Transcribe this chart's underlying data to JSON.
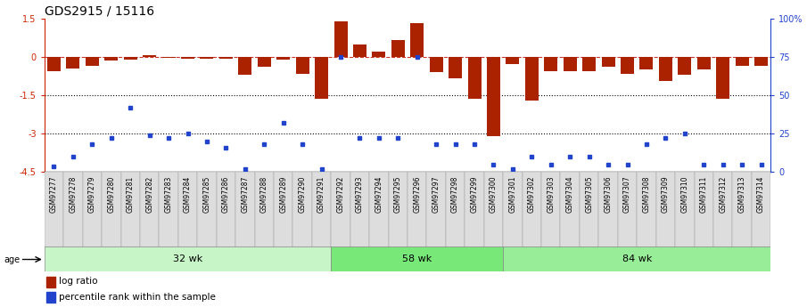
{
  "title": "GDS2915 / 15116",
  "samples": [
    "GSM97277",
    "GSM97278",
    "GSM97279",
    "GSM97280",
    "GSM97281",
    "GSM97282",
    "GSM97283",
    "GSM97284",
    "GSM97285",
    "GSM97286",
    "GSM97287",
    "GSM97288",
    "GSM97289",
    "GSM97290",
    "GSM97291",
    "GSM97292",
    "GSM97293",
    "GSM97294",
    "GSM97295",
    "GSM97296",
    "GSM97297",
    "GSM97298",
    "GSM97299",
    "GSM97300",
    "GSM97301",
    "GSM97302",
    "GSM97303",
    "GSM97304",
    "GSM97305",
    "GSM97306",
    "GSM97307",
    "GSM97308",
    "GSM97309",
    "GSM97310",
    "GSM97311",
    "GSM97312",
    "GSM97313",
    "GSM97314"
  ],
  "log_ratio": [
    -0.55,
    -0.45,
    -0.35,
    -0.15,
    -0.12,
    0.05,
    -0.05,
    -0.08,
    -0.07,
    -0.06,
    -0.7,
    -0.4,
    -0.1,
    -0.65,
    -1.65,
    1.38,
    0.48,
    0.22,
    0.65,
    1.32,
    -0.6,
    -0.85,
    -1.65,
    -3.1,
    -0.3,
    -1.7,
    -0.55,
    -0.55,
    -0.55,
    -0.4,
    -0.65,
    -0.5,
    -0.95,
    -0.7,
    -0.5,
    -1.65,
    -0.35,
    -0.35
  ],
  "percentile": [
    3.5,
    10.0,
    18.0,
    22.0,
    42.0,
    24.0,
    22.0,
    25.0,
    20.0,
    16.0,
    2.0,
    18.0,
    32.0,
    18.0,
    2.0,
    75.0,
    22.0,
    22.0,
    22.0,
    75.0,
    18.0,
    18.0,
    18.0,
    5.0,
    2.0,
    10.0,
    5.0,
    10.0,
    10.0,
    5.0,
    5.0,
    18.0,
    22.0,
    25.0,
    5.0,
    5.0,
    5.0,
    5.0
  ],
  "groups": [
    {
      "label": "32 wk",
      "start": 0,
      "end": 15,
      "color": "#c8f5c8"
    },
    {
      "label": "58 wk",
      "start": 15,
      "end": 24,
      "color": "#78e878"
    },
    {
      "label": "84 wk",
      "start": 24,
      "end": 38,
      "color": "#98ee98"
    }
  ],
  "ylim": [
    -4.5,
    1.5
  ],
  "yticks": [
    1.5,
    0.0,
    -1.5,
    -3.0,
    -4.5
  ],
  "right_yticks": [
    100,
    75,
    50,
    25,
    0
  ],
  "right_ytick_labels": [
    "100%",
    "75",
    "50",
    "25",
    "0"
  ],
  "bar_color": "#aa2200",
  "dot_color": "#2244cc",
  "bg_color": "#ffffff",
  "title_fontsize": 10,
  "tick_fontsize": 7,
  "label_fontsize": 5.5
}
